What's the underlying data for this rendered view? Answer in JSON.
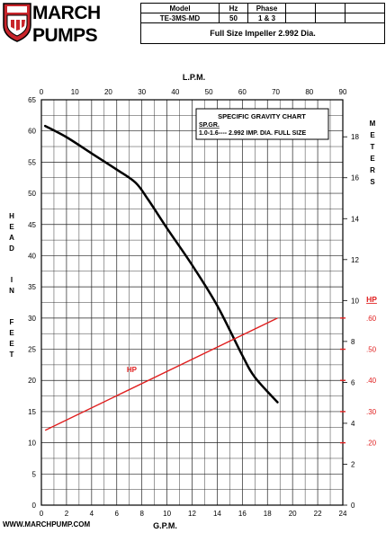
{
  "brand": {
    "name_line1": "MARCH",
    "name_line2": "PUMPS",
    "logo_icon": "march-pumps-shield-icon",
    "colors": {
      "shield": "#c8252b",
      "text": "#000000"
    }
  },
  "info_table": {
    "headers": [
      "Model",
      "Hz",
      "Phase"
    ],
    "values": [
      "TE-3MS-MD",
      "50",
      "1 & 3"
    ],
    "description": "Full Size Impeller 2.992 Dia."
  },
  "footer": {
    "url": "WWW.MARCHPUMP.COM"
  },
  "sg_chart": {
    "title": "SPECIFIC GRAVITY CHART",
    "line1": "SP.GR.",
    "line2": "1.0-1.6---- 2.992 IMP. DIA. FULL SIZE"
  },
  "chart_data": {
    "type": "line",
    "title": "",
    "top_axis": {
      "label": "L.P.M.",
      "range": [
        0,
        90
      ],
      "ticks": [
        0,
        10,
        20,
        30,
        40,
        50,
        60,
        70,
        80,
        90
      ]
    },
    "bottom_axis": {
      "label": "G.P.M.",
      "range": [
        0,
        24
      ],
      "ticks": [
        0,
        2,
        4,
        6,
        8,
        10,
        12,
        14,
        16,
        18,
        20,
        22,
        24
      ]
    },
    "left_axis": {
      "label": "HEAD IN FEET",
      "range": [
        0,
        65
      ],
      "ticks": [
        0,
        5,
        10,
        15,
        20,
        25,
        30,
        35,
        40,
        45,
        50,
        55,
        60,
        65
      ]
    },
    "right_axis_meters": {
      "label": "METERS",
      "range": [
        0,
        19.81
      ],
      "ticks": [
        0,
        2,
        4,
        6,
        8,
        10,
        12,
        14,
        16,
        18
      ]
    },
    "right_axis_hp": {
      "label": "HP",
      "ticks": [
        ".20",
        ".30",
        ".40",
        ".50",
        ".60"
      ],
      "tick_head_ft": [
        10,
        15,
        20,
        25,
        30
      ],
      "color": "#e02020"
    },
    "grid": true,
    "series": [
      {
        "kind": "head",
        "color": "#000000",
        "x": [
          0.3,
          2,
          4,
          6,
          7.5,
          8.5,
          10,
          12,
          14,
          16,
          17,
          18.8
        ],
        "y": [
          60.8,
          59,
          56.4,
          53.8,
          51.7,
          49,
          44.4,
          38.5,
          32,
          24,
          20.5,
          16.5
        ]
      },
      {
        "name": "HP",
        "kind": "hp",
        "color": "#e02020",
        "x": [
          0.3,
          18.8
        ],
        "y": [
          12,
          30
        ]
      }
    ]
  }
}
